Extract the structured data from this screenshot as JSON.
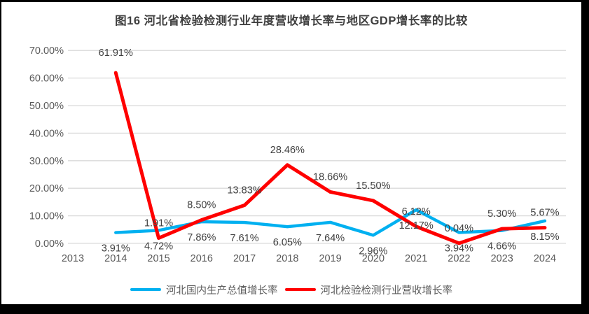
{
  "chart_data": {
    "type": "line",
    "title": "图16 河北省检验检测行业年度营收增长率与地区GDP增长率的比较",
    "categories": [
      "2013",
      "2014",
      "2015",
      "2016",
      "2017",
      "2018",
      "2019",
      "2020",
      "2021",
      "2022",
      "2023",
      "2024"
    ],
    "series": [
      {
        "id": "gdp-growth",
        "name": "河北国内生产总值增长率",
        "color": "#00B0F0",
        "values": [
          null,
          3.91,
          4.72,
          7.86,
          7.61,
          6.05,
          7.64,
          2.96,
          12.17,
          3.94,
          4.66,
          8.15
        ],
        "data_labels": [
          "",
          "3.91%",
          "4.72%",
          "7.86%",
          "7.61%",
          "6.05%",
          "7.64%",
          "2.96%",
          "12.17%",
          "3.94%",
          "4.66%",
          "8.15%"
        ],
        "label_position": "below"
      },
      {
        "id": "revenue-growth",
        "name": "河北检验检测行业营收增长率",
        "color": "#FF0000",
        "values": [
          null,
          61.91,
          1.91,
          8.5,
          13.83,
          28.46,
          18.66,
          15.5,
          6.12,
          0.04,
          5.3,
          5.67
        ],
        "data_labels": [
          "",
          "61.91%",
          "1.91%",
          "8.50%",
          "13.83%",
          "28.46%",
          "18.66%",
          "15.50%",
          "6.12%",
          "0.04%",
          "5.30%",
          "5.67%"
        ],
        "label_position": "above"
      }
    ],
    "y_axis": {
      "min": 0,
      "max": 70,
      "step": 10,
      "tick_labels": [
        "0.00%",
        "10.00%",
        "20.00%",
        "30.00%",
        "40.00%",
        "50.00%",
        "60.00%",
        "70.00%"
      ]
    },
    "x_axis": {
      "tick_labels": [
        "2013",
        "2014",
        "2015",
        "2016",
        "2017",
        "2018",
        "2019",
        "2020",
        "2021",
        "2022",
        "2023",
        "2024"
      ]
    },
    "grid": true,
    "legend_position": "bottom"
  },
  "colors": {
    "background": "#FFFFFF",
    "frame": "#000000",
    "gridline": "#D9D9D9",
    "tick_text": "#595959",
    "data_label_text": "#404040",
    "title_text": "#404040"
  }
}
